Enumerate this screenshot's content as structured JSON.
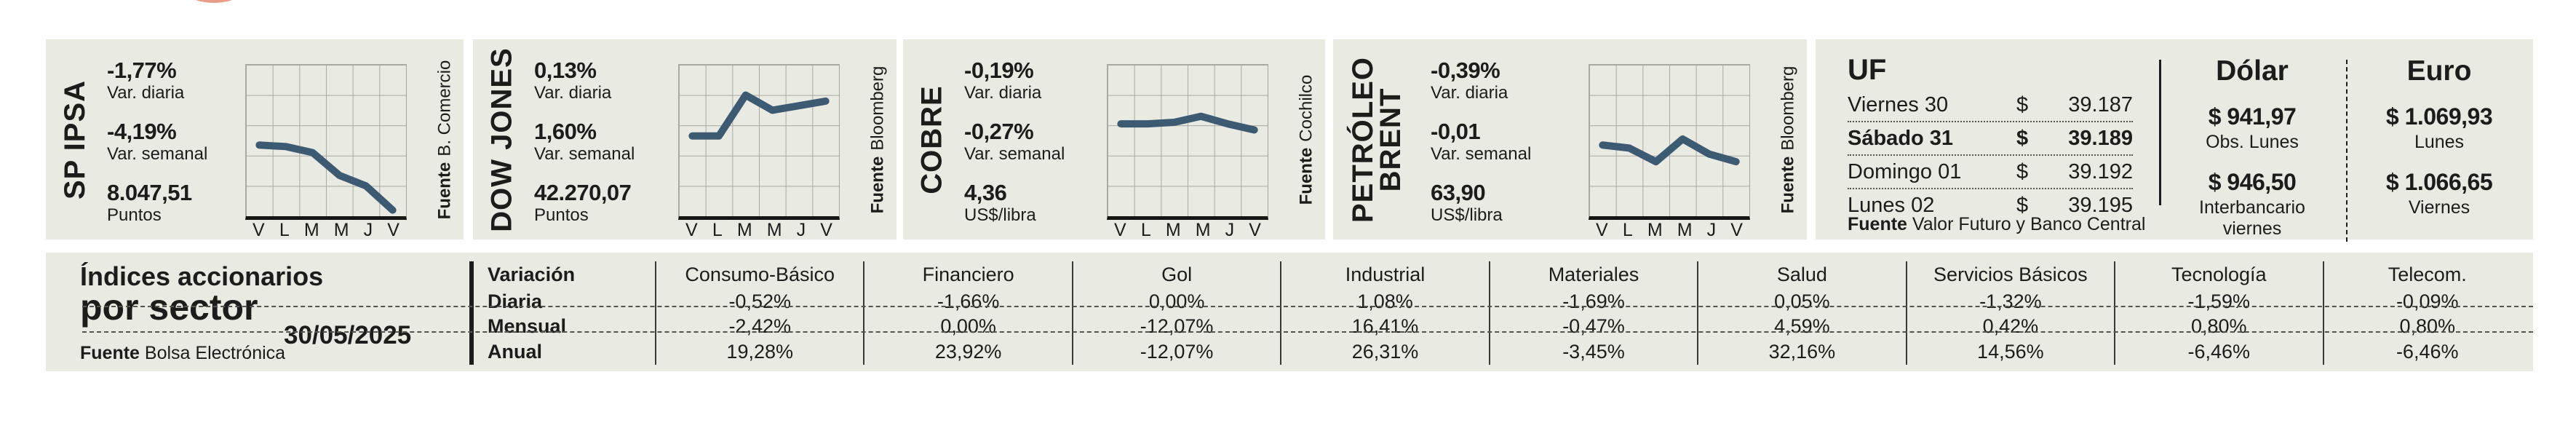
{
  "cards": [
    {
      "title_lines": [
        "SP IPSA"
      ],
      "var_daily": "-1,77%",
      "var_daily_label": "Var. diaria",
      "var_weekly": "-4,19%",
      "var_weekly_label": "Var. semanal",
      "value": "8.047,51",
      "unit": "Puntos",
      "source_label": "Fuente",
      "source": "B. Comercio"
    },
    {
      "title_lines": [
        "DOW JONES"
      ],
      "var_daily": "0,13%",
      "var_daily_label": "Var. diaria",
      "var_weekly": "1,60%",
      "var_weekly_label": "Var. semanal",
      "value": "42.270,07",
      "unit": "Puntos",
      "source_label": "Fuente",
      "source": "Bloomberg"
    },
    {
      "title_lines": [
        "COBRE"
      ],
      "var_daily": "-0,19%",
      "var_daily_label": "Var. diaria",
      "var_weekly": "-0,27%",
      "var_weekly_label": "Var. semanal",
      "value": "4,36",
      "unit": "US$/libra",
      "source_label": "Fuente",
      "source": "Cochilco"
    },
    {
      "title_lines": [
        "PETRÓLEO",
        "BRENT"
      ],
      "var_daily": "-0,39%",
      "var_daily_label": "Var. diaria",
      "var_weekly": "-0,01",
      "var_weekly_label": "Var. semanal",
      "value": "63,90",
      "unit": "US$/libra",
      "source_label": "Fuente",
      "source": "Bloomberg"
    }
  ],
  "uf": {
    "title": "UF",
    "currency": "$",
    "rows": [
      {
        "day": "Viernes 30",
        "value": "39.187"
      },
      {
        "day": "Sábado 31",
        "value": "39.189"
      },
      {
        "day": "Domingo 01",
        "value": "39.192"
      },
      {
        "day": "Lunes 02",
        "value": "39.195"
      }
    ],
    "source_label": "Fuente",
    "source": "Valor Futuro y Banco Central"
  },
  "dolar": {
    "title": "Dólar",
    "value1": "$ 941,97",
    "caption1": "Obs. Lunes",
    "value2": "$ 946,50",
    "caption2a": "Interbancario",
    "caption2b": "viernes"
  },
  "euro": {
    "title": "Euro",
    "value1": "$ 1.069,93",
    "caption1": "Lunes",
    "value2": "$ 1.066,65",
    "caption2": "Viernes"
  },
  "sector_table": {
    "title_line1": "Índices accionarios",
    "title_line2": "por sector",
    "date": "30/05/2025",
    "source_label": "Fuente",
    "source": "Bolsa Electrónica",
    "header": "Variación",
    "row_labels": [
      "Diaria",
      "Mensual",
      "Anual"
    ],
    "columns": [
      {
        "name": "Consumo-Básico",
        "values": [
          "-0,52%",
          "-2,42%",
          "19,28%"
        ]
      },
      {
        "name": "Financiero",
        "values": [
          "-1,66%",
          "0,00%",
          "23,92%"
        ]
      },
      {
        "name": "Gol",
        "values": [
          "0,00%",
          "-12,07%",
          "-12,07%"
        ]
      },
      {
        "name": "Industrial",
        "values": [
          "1,08%",
          "16,41%",
          "26,31%"
        ]
      },
      {
        "name": "Materiales",
        "values": [
          "-1,69%",
          "-0,47%",
          "-3,45%"
        ]
      },
      {
        "name": "Salud",
        "values": [
          "0,05%",
          "4,59%",
          "32,16%"
        ]
      },
      {
        "name": "Servicios Básicos",
        "values": [
          "-1,32%",
          "0,42%",
          "14,56%"
        ]
      },
      {
        "name": "Tecnología",
        "values": [
          "-1,59%",
          "0,80%",
          "-6,46%"
        ]
      },
      {
        "name": "Telecom.",
        "values": [
          "-0,09%",
          "0,80%",
          "-6,46%"
        ]
      }
    ]
  },
  "chart_data": [
    {
      "type": "line",
      "title": "SP IPSA",
      "x": [
        "V",
        "L",
        "M",
        "M",
        "J",
        "V"
      ],
      "values_relative": [
        0.47,
        0.46,
        0.42,
        0.27,
        0.2,
        0.04
      ],
      "latest_value": "8.047,51",
      "unit": "Puntos",
      "var_diaria": "-1,77%",
      "var_semanal": "-4,19%",
      "grid": "on",
      "legend": "none"
    },
    {
      "type": "line",
      "title": "DOW JONES",
      "x": [
        "V",
        "L",
        "M",
        "M",
        "J",
        "V"
      ],
      "values_relative": [
        0.53,
        0.53,
        0.8,
        0.7,
        0.73,
        0.76
      ],
      "latest_value": "42.270,07",
      "unit": "Puntos",
      "var_diaria": "0,13%",
      "var_semanal": "1,60%",
      "grid": "on",
      "legend": "none"
    },
    {
      "type": "line",
      "title": "COBRE",
      "x": [
        "V",
        "L",
        "M",
        "M",
        "J",
        "V"
      ],
      "values_relative": [
        0.61,
        0.61,
        0.62,
        0.66,
        0.61,
        0.57
      ],
      "latest_value": "4,36",
      "unit": "US$/libra",
      "var_diaria": "-0,19%",
      "var_semanal": "-0,27%",
      "grid": "on",
      "legend": "none"
    },
    {
      "type": "line",
      "title": "PETRÓLEO BRENT",
      "x": [
        "V",
        "L",
        "M",
        "M",
        "J",
        "V"
      ],
      "values_relative": [
        0.47,
        0.45,
        0.36,
        0.51,
        0.41,
        0.36
      ],
      "latest_value": "63,90",
      "unit": "US$/libra",
      "var_diaria": "-0,39%",
      "var_semanal": "-0,01",
      "grid": "on",
      "legend": "none"
    },
    {
      "type": "table",
      "title": "Índices accionarios por sector",
      "date": "30/05/2025",
      "categories": [
        "Consumo-Básico",
        "Financiero",
        "Gol",
        "Industrial",
        "Materiales",
        "Salud",
        "Servicios Básicos",
        "Tecnología",
        "Telecom."
      ],
      "series": [
        {
          "name": "Diaria",
          "values": [
            "-0,52%",
            "-1,66%",
            "0,00%",
            "1,08%",
            "-1,69%",
            "0,05%",
            "-1,32%",
            "-1,59%",
            "-0,09%"
          ]
        },
        {
          "name": "Mensual",
          "values": [
            "-2,42%",
            "0,00%",
            "-12,07%",
            "16,41%",
            "-0,47%",
            "4,59%",
            "0,42%",
            "0,80%",
            "0,80%"
          ]
        },
        {
          "name": "Anual",
          "values": [
            "19,28%",
            "23,92%",
            "-12,07%",
            "26,31%",
            "-3,45%",
            "32,16%",
            "14,56%",
            "-6,46%",
            "-6,46%"
          ]
        }
      ]
    }
  ],
  "colors": {
    "card_background": "#e9eae1",
    "chart_line": "#3d5a73",
    "text": "#1c1c1a",
    "logo_red": "#e79d86"
  }
}
